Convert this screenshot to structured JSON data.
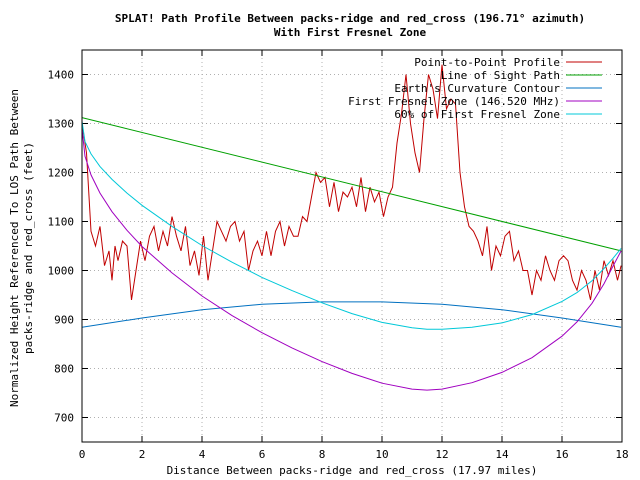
{
  "chart_data": {
    "type": "line",
    "title": "SPLAT! Path Profile Between packs-ridge and red_cross (196.71° azimuth)",
    "subtitle": "With First Fresnel Zone",
    "xlabel": "Distance Between packs-ridge and red_cross (17.97 miles)",
    "ylabel_line1": "Normalized Height Referenced To LOS Path Between",
    "ylabel_line2": "packs-ridge and red_cross (feet)",
    "xlim": [
      0,
      18
    ],
    "ylim": [
      650,
      1450
    ],
    "xticks": [
      0,
      2,
      4,
      6,
      8,
      10,
      12,
      14,
      16,
      18
    ],
    "yticks": [
      700,
      800,
      900,
      1000,
      1100,
      1200,
      1300,
      1400
    ],
    "grid": true,
    "legend_position": "top-right",
    "series": [
      {
        "name": "Point-to-Point Profile",
        "color": "#c00000",
        "x": [
          0,
          0.15,
          0.3,
          0.45,
          0.6,
          0.75,
          0.9,
          1.0,
          1.1,
          1.2,
          1.35,
          1.5,
          1.65,
          1.8,
          1.95,
          2.1,
          2.25,
          2.4,
          2.55,
          2.7,
          2.85,
          3.0,
          3.15,
          3.3,
          3.45,
          3.6,
          3.75,
          3.9,
          4.05,
          4.2,
          4.35,
          4.5,
          4.65,
          4.8,
          4.95,
          5.1,
          5.25,
          5.4,
          5.55,
          5.7,
          5.85,
          6.0,
          6.15,
          6.3,
          6.45,
          6.6,
          6.75,
          6.9,
          7.05,
          7.2,
          7.35,
          7.5,
          7.65,
          7.8,
          7.95,
          8.1,
          8.25,
          8.4,
          8.55,
          8.7,
          8.85,
          9.0,
          9.15,
          9.3,
          9.45,
          9.6,
          9.75,
          9.9,
          10.05,
          10.2,
          10.35,
          10.5,
          10.65,
          10.8,
          10.95,
          11.1,
          11.25,
          11.4,
          11.55,
          11.7,
          11.85,
          12.0,
          12.15,
          12.3,
          12.45,
          12.6,
          12.75,
          12.9,
          13.05,
          13.2,
          13.35,
          13.5,
          13.65,
          13.8,
          13.95,
          14.1,
          14.25,
          14.4,
          14.55,
          14.7,
          14.85,
          15.0,
          15.15,
          15.3,
          15.45,
          15.6,
          15.75,
          15.9,
          16.05,
          16.2,
          16.35,
          16.5,
          16.65,
          16.8,
          16.95,
          17.1,
          17.25,
          17.4,
          17.55,
          17.7,
          17.85,
          17.97
        ],
        "values": [
          1300,
          1240,
          1080,
          1050,
          1090,
          1010,
          1040,
          980,
          1050,
          1020,
          1060,
          1050,
          940,
          1000,
          1060,
          1020,
          1070,
          1090,
          1040,
          1080,
          1050,
          1110,
          1070,
          1040,
          1090,
          1010,
          1040,
          990,
          1070,
          980,
          1040,
          1100,
          1080,
          1060,
          1090,
          1100,
          1060,
          1080,
          1000,
          1040,
          1060,
          1030,
          1080,
          1030,
          1080,
          1100,
          1050,
          1090,
          1070,
          1070,
          1110,
          1100,
          1150,
          1200,
          1180,
          1190,
          1130,
          1180,
          1120,
          1160,
          1150,
          1170,
          1130,
          1190,
          1120,
          1170,
          1140,
          1160,
          1110,
          1150,
          1170,
          1260,
          1320,
          1400,
          1300,
          1240,
          1200,
          1310,
          1400,
          1370,
          1310,
          1420,
          1330,
          1350,
          1340,
          1200,
          1130,
          1090,
          1080,
          1060,
          1030,
          1090,
          1000,
          1050,
          1030,
          1070,
          1080,
          1020,
          1040,
          1000,
          1000,
          950,
          1000,
          980,
          1030,
          1000,
          980,
          1020,
          1030,
          1020,
          980,
          960,
          1000,
          980,
          940,
          1000,
          960,
          1020,
          990,
          1020,
          980,
          1010
        ]
      },
      {
        "name": "Line of Sight Path",
        "color": "#00a000",
        "x": [
          0,
          17.97
        ],
        "values": [
          1312,
          1040
        ]
      },
      {
        "name": "Earth's Curvature Contour",
        "color": "#0070c0",
        "x": [
          0,
          2,
          4,
          6,
          8,
          10,
          12,
          14,
          16,
          17.97
        ],
        "values": [
          884,
          903,
          920,
          931,
          936,
          936,
          931,
          920,
          903,
          884
        ]
      },
      {
        "name": "First Fresnel Zone (146.520 MHz)",
        "color": "#a000c0",
        "x": [
          0,
          0.1,
          0.3,
          0.6,
          1.0,
          1.5,
          2,
          3,
          4,
          5,
          6,
          7,
          8,
          9,
          10,
          11,
          11.5,
          12,
          13,
          14,
          15,
          16,
          16.5,
          17,
          17.4,
          17.7,
          17.97
        ],
        "values": [
          1290,
          1233,
          1195,
          1158,
          1120,
          1082,
          1049,
          995,
          948,
          908,
          873,
          842,
          814,
          790,
          770,
          758,
          756,
          758,
          771,
          792,
          822,
          866,
          895,
          933,
          973,
          1009,
          1040
        ]
      },
      {
        "name": "60% of First Fresnel Zone",
        "color": "#00c8d8",
        "x": [
          0,
          0.1,
          0.3,
          0.6,
          1.0,
          1.5,
          2,
          3,
          4,
          5,
          6,
          7,
          8,
          9,
          10,
          11,
          11.5,
          12,
          13,
          14,
          15,
          16,
          16.5,
          17,
          17.4,
          17.7,
          17.97
        ],
        "values": [
          1305,
          1263,
          1238,
          1212,
          1186,
          1158,
          1133,
          1090,
          1051,
          1017,
          986,
          959,
          934,
          912,
          894,
          883,
          880,
          880,
          884,
          893,
          910,
          937,
          955,
          979,
          1004,
          1025,
          1045
        ]
      }
    ]
  }
}
